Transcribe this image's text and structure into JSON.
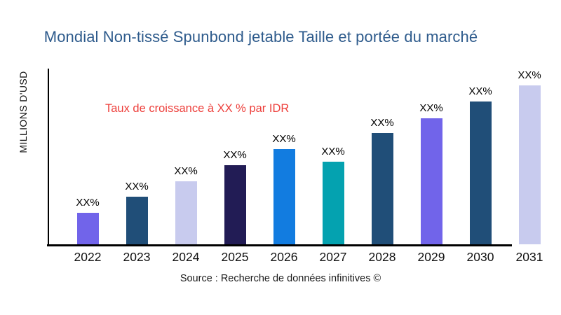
{
  "title": {
    "text": "Mondial Non-tissé Spunbond jetable Taille et portée du marché",
    "color": "#2E5B8C"
  },
  "annotation": {
    "text": "Taux de croissance à XX % par IDR",
    "color": "#ED3F3B"
  },
  "y_axis_label": "MILLIONS D'USD",
  "source_line": "Source : Recherche de données infinitives ©",
  "axis_color": "#000000",
  "chart_data": {
    "type": "bar",
    "title": "Mondial Non-tissé Spunbond jetable Taille et portée du marché",
    "xlabel": "",
    "ylabel": "MILLIONS D'USD",
    "categories": [
      "2022",
      "2023",
      "2024",
      "2025",
      "2026",
      "2027",
      "2028",
      "2029",
      "2030",
      "2031"
    ],
    "values": [
      45,
      68,
      90,
      113,
      136,
      118,
      159,
      180,
      204,
      227
    ],
    "ylim": [
      0,
      252
    ],
    "bar_labels": [
      "XX%",
      "XX%",
      "XX%",
      "XX%",
      "XX%",
      "XX%",
      "XX%",
      "XX%",
      "XX%",
      "XX%"
    ],
    "bar_colors": [
      "#7164EA",
      "#204E78",
      "#C8CBEE",
      "#221C55",
      "#127CE0",
      "#04A2B0",
      "#204E78",
      "#7164EA",
      "#204E78",
      "#C8CBEE"
    ],
    "annotation": "Taux de croissance à XX % par IDR",
    "grid": false,
    "legend": false
  }
}
